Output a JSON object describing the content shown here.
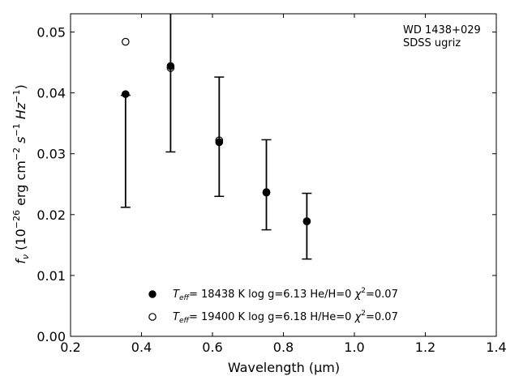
{
  "chart_data": {
    "type": "scatter",
    "title": "",
    "xlabel": "Wavelength (μm)",
    "ylabel_parts": {
      "pre": "f",
      "sub": "ν",
      "mid": " (10",
      "exp1": "−26",
      "unit": " erg cm",
      "exp2": "−2",
      "s": " s",
      "exp3": "−1",
      "hz": " Hz",
      "exp4": "−1",
      "post": ")"
    },
    "xlim": [
      0.2,
      1.4
    ],
    "ylim": [
      0.0,
      0.053
    ],
    "x_ticks": [
      0.2,
      0.4,
      0.6,
      0.8,
      1.0,
      1.2,
      1.4
    ],
    "x_tick_labels": [
      "0.2",
      "0.4",
      "0.6",
      "0.8",
      "1.0",
      "1.2",
      "1.4"
    ],
    "y_ticks": [
      0.0,
      0.01,
      0.02,
      0.03,
      0.04,
      0.05
    ],
    "y_tick_labels": [
      "0.00",
      "0.01",
      "0.02",
      "0.03",
      "0.04",
      "0.05"
    ],
    "grid": false,
    "annotation": [
      "WD 1438+029",
      "SDSS ugriz"
    ],
    "observed": {
      "x": [
        0.355,
        0.482,
        0.619,
        0.752,
        0.866
      ],
      "y": [
        0.0396,
        0.0441,
        0.0318,
        0.0236,
        0.0189
      ],
      "yerr_low": [
        0.0212,
        0.0303,
        0.023,
        0.0175,
        0.0127
      ],
      "yerr_high": [
        0.0396,
        0.0545,
        0.0426,
        0.0323,
        0.0235
      ]
    },
    "series": [
      {
        "label": {
          "teff_sym": "T",
          "teff_sub": "eff",
          "text1": "= 18438 K  log g=6.13  He/H=0  ",
          "chi": "χ",
          "chi_sup": "2",
          "text2": "=0.07"
        },
        "marker": "filled",
        "x": [
          0.355,
          0.482,
          0.619,
          0.752,
          0.866
        ],
        "y": [
          0.0398,
          0.0444,
          0.0319,
          0.0236,
          0.0189
        ]
      },
      {
        "label": {
          "teff_sym": "T",
          "teff_sub": "eff",
          "text1": "= 19400 K  log g=6.18  H/He=0  ",
          "chi": "χ",
          "chi_sup": "2",
          "text2": "=0.07"
        },
        "marker": "open",
        "x": [
          0.355,
          0.482,
          0.619,
          0.752,
          0.866
        ],
        "y": [
          0.0484,
          0.0441,
          0.0322,
          0.0237,
          0.0189
        ]
      }
    ],
    "legend_position": "bottom-center"
  }
}
